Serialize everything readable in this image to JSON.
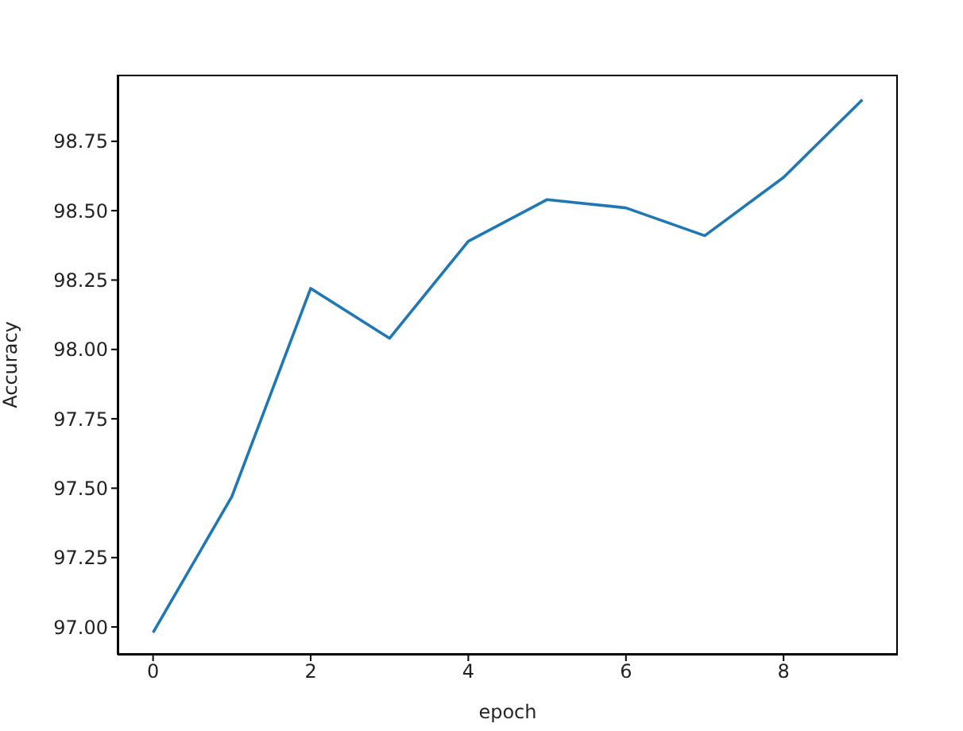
{
  "chart_data": {
    "type": "line",
    "xlabel": "epoch",
    "ylabel": "Accuracy",
    "x": [
      0,
      1,
      2,
      3,
      4,
      5,
      6,
      7,
      8,
      9
    ],
    "series": [
      {
        "color": "#1f77b4",
        "values": [
          96.98,
          97.47,
          98.22,
          98.04,
          98.39,
          98.54,
          98.51,
          98.41,
          98.62,
          98.9
        ]
      }
    ],
    "xlim": [
      -0.45,
      9.45
    ],
    "xticks": [
      0,
      2,
      4,
      6,
      8
    ],
    "ylim": [
      96.9,
      98.99
    ],
    "yticks": [
      {
        "value": 97,
        "label": "97.00"
      },
      {
        "value": 97.25,
        "label": "97.25"
      },
      {
        "value": 97.5,
        "label": "97.50"
      },
      {
        "value": 97.75,
        "label": "97.75"
      },
      {
        "value": 98,
        "label": "98.00"
      },
      {
        "value": 98.25,
        "label": "98.25"
      },
      {
        "value": 98.5,
        "label": "98.50"
      },
      {
        "value": 98.75,
        "label": "98.75"
      }
    ],
    "grid": false,
    "legend": false,
    "marker": "none",
    "line_style": "solid"
  }
}
